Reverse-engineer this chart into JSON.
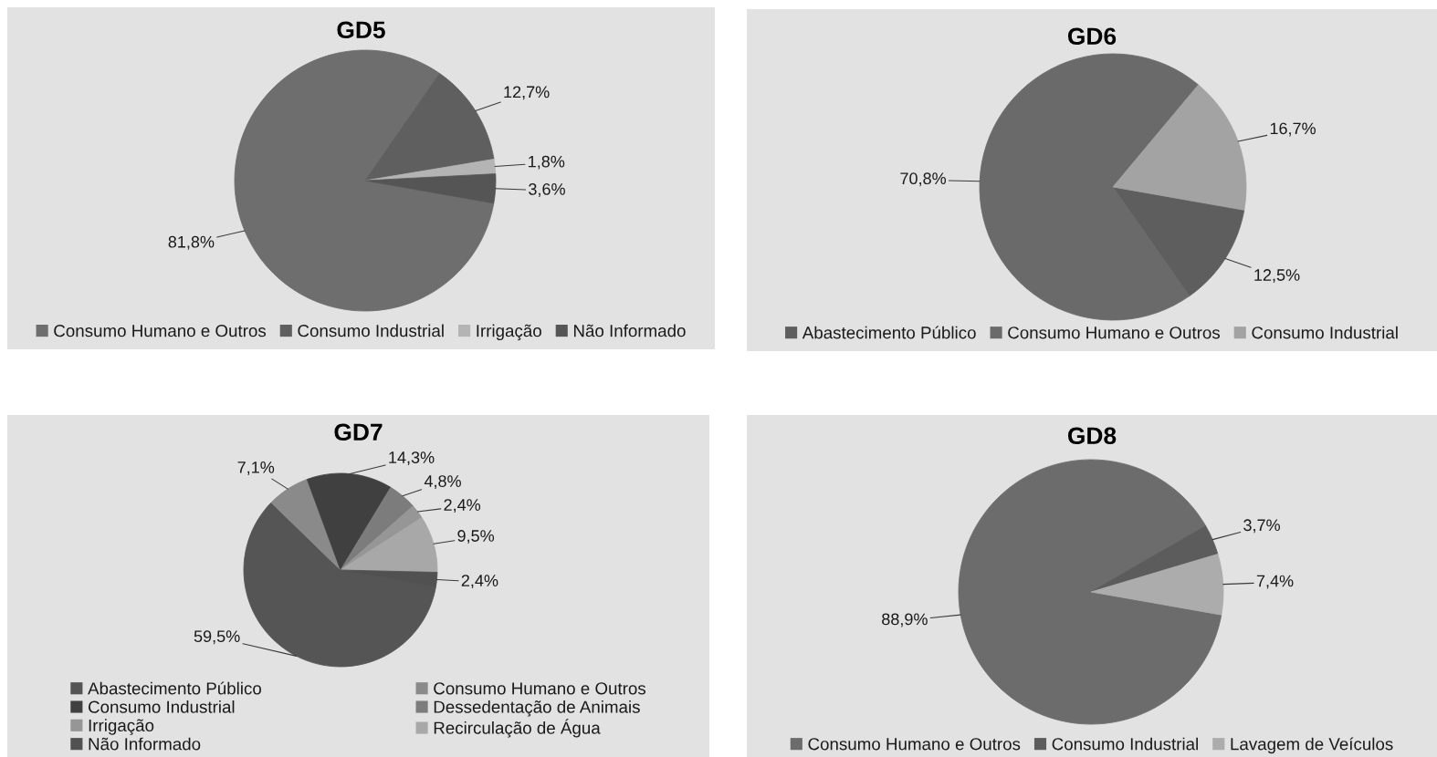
{
  "chart_data": [
    {
      "type": "pie",
      "title": "GD5",
      "categories": [
        "Consumo Humano e Outros",
        "Consumo Industrial",
        "Irrigação",
        "Não Informado"
      ],
      "values": [
        81.8,
        12.7,
        1.8,
        3.6
      ],
      "colors": [
        "#6e6e6e",
        "#5f5f5f",
        "#b4b4b4",
        "#555555"
      ],
      "value_labels": [
        "81,8%",
        "12,7%",
        "1,8%",
        "3,6%"
      ],
      "legend": "bottom"
    },
    {
      "type": "pie",
      "title": "GD6",
      "categories": [
        "Abastecimento Público",
        "Consumo Humano e Outros",
        "Consumo Industrial"
      ],
      "values": [
        12.5,
        70.8,
        16.7
      ],
      "colors": [
        "#5e5e5e",
        "#6a6a6a",
        "#a3a3a3"
      ],
      "value_labels": [
        "12,5%",
        "70,8%",
        "16,7%"
      ],
      "legend": "bottom"
    },
    {
      "type": "pie",
      "title": "GD7",
      "categories": [
        "Abastecimento Público",
        "Consumo Humano e Outros",
        "Consumo Industrial",
        "Dessedentação de Animais",
        "Irrigação",
        "Recirculação de Água",
        "Não Informado"
      ],
      "values": [
        59.5,
        7.1,
        14.3,
        4.8,
        2.4,
        9.5,
        2.4
      ],
      "colors": [
        "#555555",
        "#8a8a8a",
        "#404040",
        "#7c7c7c",
        "#969696",
        "#a8a8a8",
        "#515151"
      ],
      "value_labels": [
        "59,5%",
        "7,1%",
        "14,3%",
        "4,8%",
        "2,4%",
        "9,5%",
        "2,4%"
      ],
      "legend": "bottom"
    },
    {
      "type": "pie",
      "title": "GD8",
      "categories": [
        "Consumo Humano e Outros",
        "Consumo Industrial",
        "Lavagem de Veículos"
      ],
      "values": [
        88.9,
        3.7,
        7.4
      ],
      "colors": [
        "#6c6c6c",
        "#5c5c5c",
        "#acacac"
      ],
      "value_labels": [
        "88,9%",
        "3,7%",
        "7,4%"
      ],
      "legend": "bottom"
    }
  ]
}
